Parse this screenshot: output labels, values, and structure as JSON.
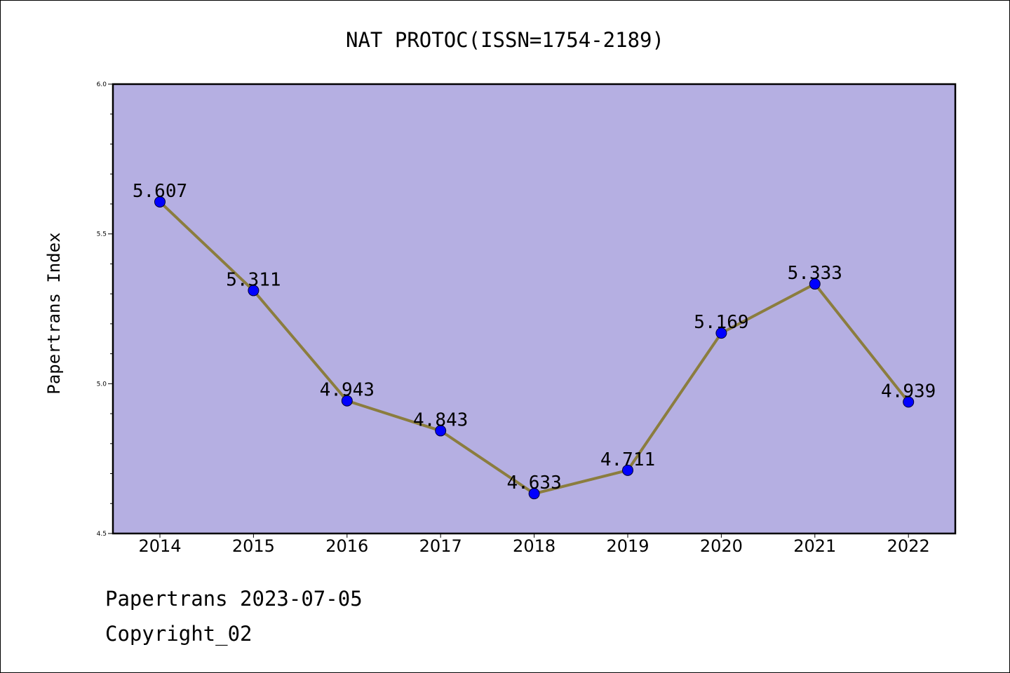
{
  "chart_data": {
    "type": "line",
    "title": "NAT PROTOC(ISSN=1754-2189)",
    "xlabel": "",
    "ylabel": "Papertrans Index",
    "x": [
      "2014",
      "2015",
      "2016",
      "2017",
      "2018",
      "2019",
      "2020",
      "2021",
      "2022"
    ],
    "series": [
      {
        "values": [
          5.607,
          5.311,
          4.943,
          4.843,
          4.633,
          4.711,
          5.169,
          5.333,
          4.939
        ],
        "labels": [
          "5.607",
          "5.311",
          "4.943",
          "4.843",
          "4.633",
          "4.711",
          "5.169",
          "5.333",
          "4.939"
        ],
        "line_color": "#8b7d3e",
        "marker_color": "#0000ff"
      }
    ],
    "ylim": [
      4.5,
      6.0
    ],
    "yticks": [
      "4.5",
      "5.0",
      "5.5",
      "6.0"
    ],
    "grid": false,
    "legend": "none",
    "plot_background": "#b5afe2"
  },
  "footer": {
    "line1": "Papertrans 2023-07-05",
    "line2": "Copyright_02"
  }
}
